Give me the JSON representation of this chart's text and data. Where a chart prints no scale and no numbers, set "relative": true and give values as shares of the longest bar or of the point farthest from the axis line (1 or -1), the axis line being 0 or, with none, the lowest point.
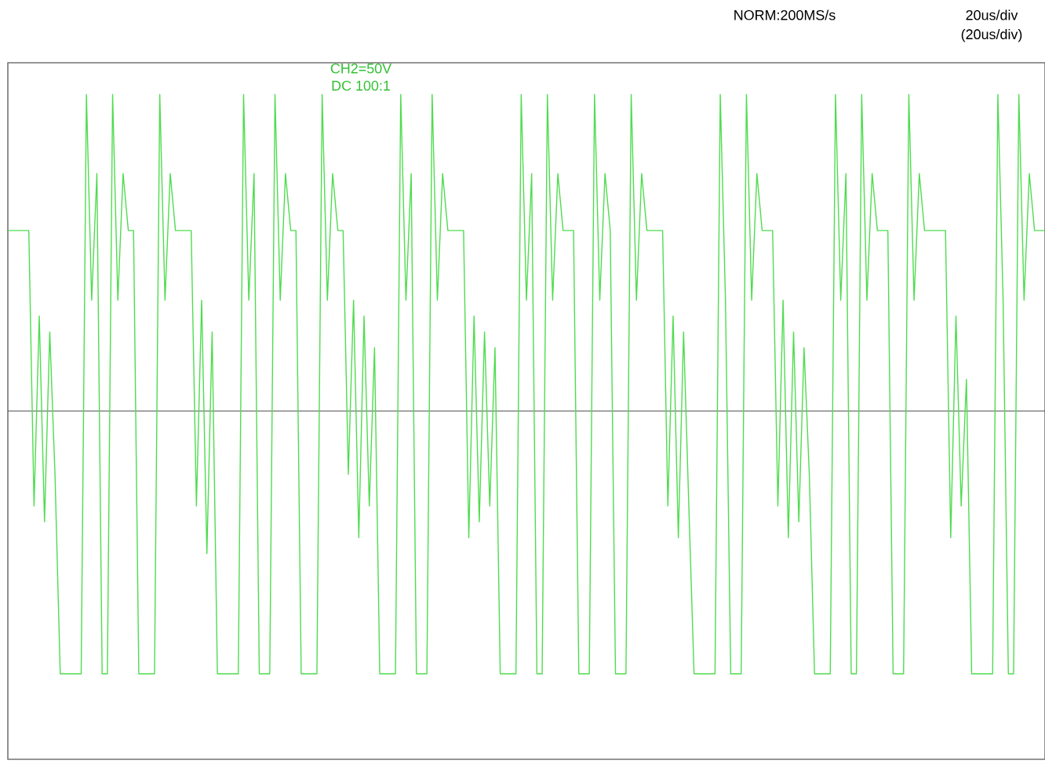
{
  "chart_data": {
    "type": "line",
    "relative": true,
    "annotations": [
      "NORM:200MS/s",
      "20us/div",
      "(20us/div)",
      "CH2=50V",
      "DC 100:1"
    ],
    "categories": [
      null,
      null,
      null,
      null,
      null,
      null,
      null,
      null,
      null,
      null,
      null,
      null,
      null,
      null,
      null,
      null,
      null,
      null,
      null,
      null,
      null,
      null,
      null,
      null,
      null,
      null,
      null,
      null,
      null,
      null,
      null,
      null,
      null,
      null,
      null,
      null,
      null,
      null,
      null,
      null,
      null,
      null,
      null,
      null,
      null,
      null,
      null,
      null,
      null,
      null,
      null,
      null,
      null,
      null,
      null,
      null,
      null,
      null,
      null,
      null,
      null,
      null,
      null,
      null,
      null,
      null,
      null,
      null,
      null,
      null,
      null,
      null,
      null,
      null,
      null,
      null,
      null,
      null,
      null,
      null,
      null,
      null,
      null,
      null,
      null,
      null,
      null,
      null,
      null,
      null,
      null,
      null,
      null,
      null,
      null,
      null,
      null,
      null,
      null,
      null,
      null,
      null,
      null,
      null,
      null,
      null,
      null,
      null,
      null,
      null,
      null,
      null,
      null,
      null,
      null,
      null,
      null,
      null,
      null,
      null,
      null,
      null,
      null,
      null,
      null,
      null,
      null,
      null,
      null,
      null,
      null,
      null,
      null,
      null,
      null,
      null,
      null,
      null,
      null,
      null,
      null,
      null,
      null,
      null,
      null,
      null,
      null,
      null,
      null,
      null,
      null,
      null,
      null,
      null,
      null,
      null,
      null,
      null,
      null,
      null,
      null,
      null,
      null,
      null,
      null,
      null,
      null,
      null,
      null,
      null,
      null,
      null,
      null,
      null,
      null,
      null,
      null,
      null,
      null,
      null,
      null,
      null,
      null,
      null,
      null,
      null,
      null,
      null,
      null,
      null,
      null,
      null,
      null,
      null,
      null,
      null,
      null,
      null,
      null
    ],
    "series": [
      {
        "color": "#4fdc4f",
        "values": [
          0.57,
          0.57,
          0.57,
          0.57,
          0.57,
          -0.3,
          0.3,
          -0.35,
          0.25,
          -0.2,
          -0.83,
          -0.83,
          -0.83,
          -0.83,
          -0.83,
          1,
          0.35,
          0.75,
          -0.83,
          -0.83,
          1,
          0.35,
          0.75,
          0.57,
          0.57,
          -0.83,
          -0.83,
          -0.83,
          -0.83,
          1,
          0.35,
          0.75,
          0.57,
          0.57,
          0.57,
          0.57,
          -0.3,
          0.35,
          -0.45,
          0.25,
          -0.83,
          -0.83,
          -0.83,
          -0.83,
          -0.83,
          1,
          0.35,
          0.75,
          -0.83,
          -0.83,
          -0.83,
          1,
          0.35,
          0.75,
          0.57,
          0.57,
          -0.83,
          -0.83,
          -0.83,
          -0.83,
          1,
          0.35,
          0.75,
          0.57,
          0.57,
          -0.2,
          0.35,
          -0.4,
          0.3,
          -0.3,
          0.2,
          -0.83,
          -0.83,
          -0.83,
          -0.83,
          1,
          0.35,
          0.75,
          -0.83,
          -0.83,
          -0.83,
          1,
          0.35,
          0.75,
          0.57,
          0.57,
          0.57,
          0.57,
          -0.4,
          0.3,
          -0.35,
          0.25,
          -0.3,
          0.2,
          -0.83,
          -0.83,
          -0.83,
          -0.83,
          1,
          0.35,
          0.75,
          -0.83,
          -0.83,
          1,
          0.35,
          0.75,
          0.57,
          0.57,
          0.57,
          -0.83,
          -0.83,
          -0.83,
          1,
          0.35,
          0.75,
          0.57,
          -0.83,
          -0.83,
          -0.83,
          1,
          0.35,
          0.75,
          0.57,
          0.57,
          0.57,
          0.57,
          -0.3,
          0.3,
          -0.4,
          0.25,
          -0.3,
          -0.83,
          -0.83,
          -0.83,
          -0.83,
          -0.83,
          1,
          0.35,
          -0.83,
          -0.83,
          -0.83,
          1,
          0.35,
          0.75,
          0.57,
          0.57,
          0.57,
          -0.3,
          0.35,
          -0.4,
          0.25,
          -0.35,
          0.2,
          -0.2,
          -0.83,
          -0.83,
          -0.83,
          -0.83,
          1,
          0.35,
          0.75,
          -0.83,
          -0.83,
          1,
          0.35,
          0.75,
          0.57,
          0.57,
          0.57,
          -0.83,
          -0.83,
          -0.83,
          1,
          0.35,
          0.75,
          0.57,
          0.57,
          0.57,
          0.57,
          0.57,
          -0.4,
          0.3,
          -0.3,
          0.1,
          -0.83,
          -0.83,
          -0.83,
          -0.83,
          -0.83,
          1,
          0.35,
          -0.83,
          -0.83,
          1,
          0.35,
          0.75,
          0.57,
          0.57,
          0.57
        ]
      }
    ]
  }
}
